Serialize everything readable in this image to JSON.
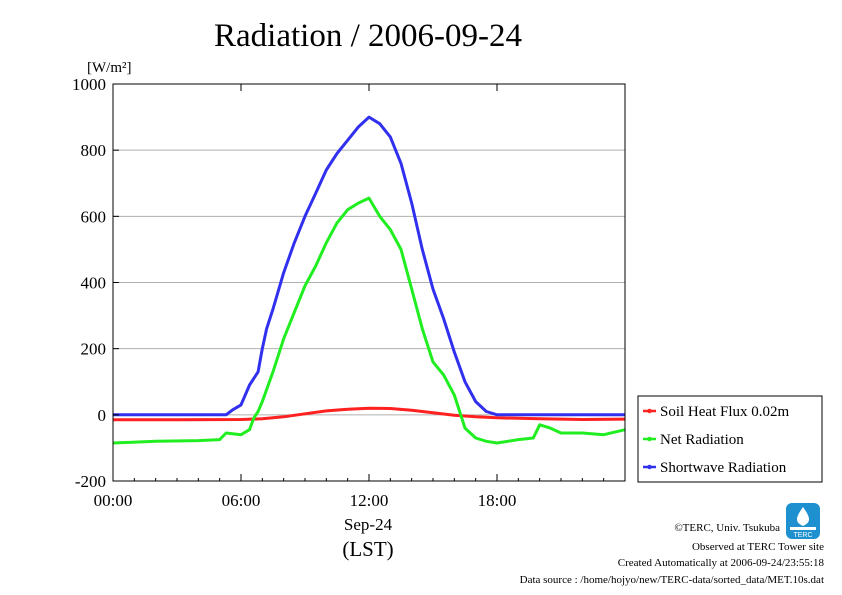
{
  "chart_data": {
    "type": "line",
    "title": "Radiation / 2006-09-24",
    "ylabel_unit": "[W/m²]",
    "xlabel_date": "Sep-24",
    "xlabel_tz": "(LST)",
    "ylim": [
      -200,
      1000
    ],
    "xlim_hours": [
      0,
      24
    ],
    "y_ticks": [
      {
        "value": 1000,
        "label": "1000"
      },
      {
        "value": 800,
        "label": "800"
      },
      {
        "value": 600,
        "label": "600"
      },
      {
        "value": 400,
        "label": "400"
      },
      {
        "value": 200,
        "label": "200"
      },
      {
        "value": 0,
        "label": "0"
      },
      {
        "value": -200,
        "label": "-200"
      }
    ],
    "x_ticks": [
      {
        "hour": 0,
        "label": "00:00"
      },
      {
        "hour": 6,
        "label": "06:00"
      },
      {
        "hour": 12,
        "label": "12:00"
      },
      {
        "hour": 18,
        "label": "18:00"
      }
    ],
    "grid": true,
    "legend_position": "right",
    "series": [
      {
        "name": "Soil Heat Flux 0.02m",
        "color": "#ff2020",
        "points": [
          [
            0,
            -15
          ],
          [
            3,
            -15
          ],
          [
            6,
            -14
          ],
          [
            7,
            -12
          ],
          [
            8,
            -6
          ],
          [
            9,
            3
          ],
          [
            10,
            12
          ],
          [
            11,
            17
          ],
          [
            12,
            20
          ],
          [
            13,
            19
          ],
          [
            14,
            14
          ],
          [
            15,
            6
          ],
          [
            16,
            -1
          ],
          [
            17,
            -6
          ],
          [
            18,
            -9
          ],
          [
            20,
            -12
          ],
          [
            22,
            -14
          ],
          [
            24,
            -13
          ]
        ]
      },
      {
        "name": "Net Radiation",
        "color": "#20ee20",
        "points": [
          [
            0,
            -85
          ],
          [
            2,
            -80
          ],
          [
            4,
            -78
          ],
          [
            5,
            -75
          ],
          [
            5.3,
            -55
          ],
          [
            6,
            -60
          ],
          [
            6.4,
            -45
          ],
          [
            6.6,
            -10
          ],
          [
            6.8,
            10
          ],
          [
            7,
            40
          ],
          [
            7.5,
            130
          ],
          [
            8,
            230
          ],
          [
            8.5,
            310
          ],
          [
            9,
            390
          ],
          [
            9.5,
            450
          ],
          [
            10,
            520
          ],
          [
            10.5,
            580
          ],
          [
            11,
            620
          ],
          [
            11.5,
            640
          ],
          [
            12,
            655
          ],
          [
            12.5,
            600
          ],
          [
            13,
            560
          ],
          [
            13.5,
            500
          ],
          [
            14,
            380
          ],
          [
            14.5,
            260
          ],
          [
            15,
            160
          ],
          [
            15.5,
            120
          ],
          [
            16,
            60
          ],
          [
            16.5,
            -40
          ],
          [
            17,
            -70
          ],
          [
            17.5,
            -80
          ],
          [
            18,
            -85
          ],
          [
            19,
            -75
          ],
          [
            19.7,
            -70
          ],
          [
            20,
            -30
          ],
          [
            20.5,
            -40
          ],
          [
            21,
            -55
          ],
          [
            22,
            -55
          ],
          [
            23,
            -60
          ],
          [
            24,
            -45
          ]
        ]
      },
      {
        "name": "Shortwave Radiation",
        "color": "#3030ee",
        "points": [
          [
            0,
            0
          ],
          [
            5.3,
            0
          ],
          [
            5.6,
            15
          ],
          [
            6,
            30
          ],
          [
            6.4,
            90
          ],
          [
            6.8,
            130
          ],
          [
            7,
            200
          ],
          [
            7.2,
            260
          ],
          [
            7.5,
            320
          ],
          [
            8,
            430
          ],
          [
            8.5,
            520
          ],
          [
            9,
            600
          ],
          [
            9.5,
            670
          ],
          [
            10,
            740
          ],
          [
            10.5,
            790
          ],
          [
            11,
            830
          ],
          [
            11.5,
            870
          ],
          [
            12,
            900
          ],
          [
            12.5,
            880
          ],
          [
            13,
            840
          ],
          [
            13.5,
            760
          ],
          [
            14,
            640
          ],
          [
            14.5,
            500
          ],
          [
            15,
            380
          ],
          [
            15.5,
            290
          ],
          [
            16,
            190
          ],
          [
            16.5,
            100
          ],
          [
            17,
            40
          ],
          [
            17.5,
            10
          ],
          [
            18,
            0
          ],
          [
            24,
            0
          ]
        ]
      }
    ]
  },
  "credits": {
    "copyright": "©TERC, Univ. Tsukuba",
    "site": "Observed at TERC Tower site",
    "created": "Created Automatically at 2006-09-24/23:55:18",
    "source": "Data source : /home/hojyo/new/TERC-data/sorted_data/MET.10s.dat"
  },
  "logo": {
    "text": "TERC",
    "color": "#1e90d0"
  }
}
